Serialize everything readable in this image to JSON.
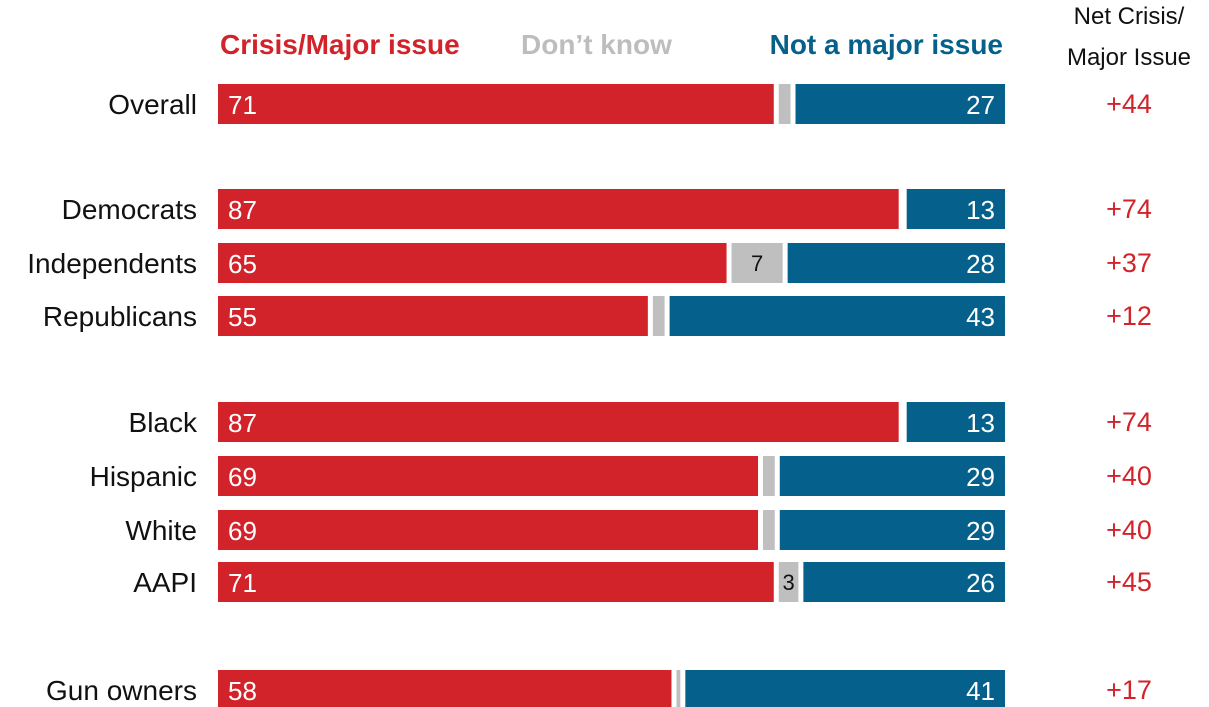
{
  "legend": {
    "crisis": "Crisis/Major issue",
    "dont_know": "Don’t know",
    "not_major": "Not a major issue"
  },
  "net_header": {
    "line1": "Net Crisis/",
    "line2": "Major Issue"
  },
  "colors": {
    "crisis": "#d2232a",
    "dont_know": "#bfbfbf",
    "not_major": "#05618c",
    "text": "#111111",
    "net": "#d2232a",
    "legend_dk": "#bdbdbd"
  },
  "chart_data": {
    "type": "bar",
    "orientation": "horizontal-stacked",
    "categories": [
      "Overall",
      "Democrats",
      "Independents",
      "Republicans",
      "Black",
      "Hispanic",
      "White",
      "AAPI",
      "Gun owners"
    ],
    "series": [
      {
        "name": "Crisis/Major issue",
        "values": [
          71,
          87,
          65,
          55,
          87,
          69,
          69,
          71,
          58
        ]
      },
      {
        "name": "Don’t know",
        "values": [
          2,
          0,
          7,
          2,
          0,
          2,
          2,
          3,
          1
        ],
        "value_labels": [
          "",
          "",
          "7",
          "",
          "",
          "",
          "",
          "3",
          ""
        ]
      },
      {
        "name": "Not a major issue",
        "values": [
          27,
          13,
          28,
          43,
          13,
          29,
          29,
          26,
          41
        ]
      }
    ],
    "net": [
      "+44",
      "+74",
      "+37",
      "+12",
      "+74",
      "+40",
      "+40",
      "+45",
      "+17"
    ],
    "title": "",
    "xlabel": "",
    "ylabel": "",
    "xlim": [
      0,
      100
    ],
    "grid": false,
    "legend": "top"
  }
}
